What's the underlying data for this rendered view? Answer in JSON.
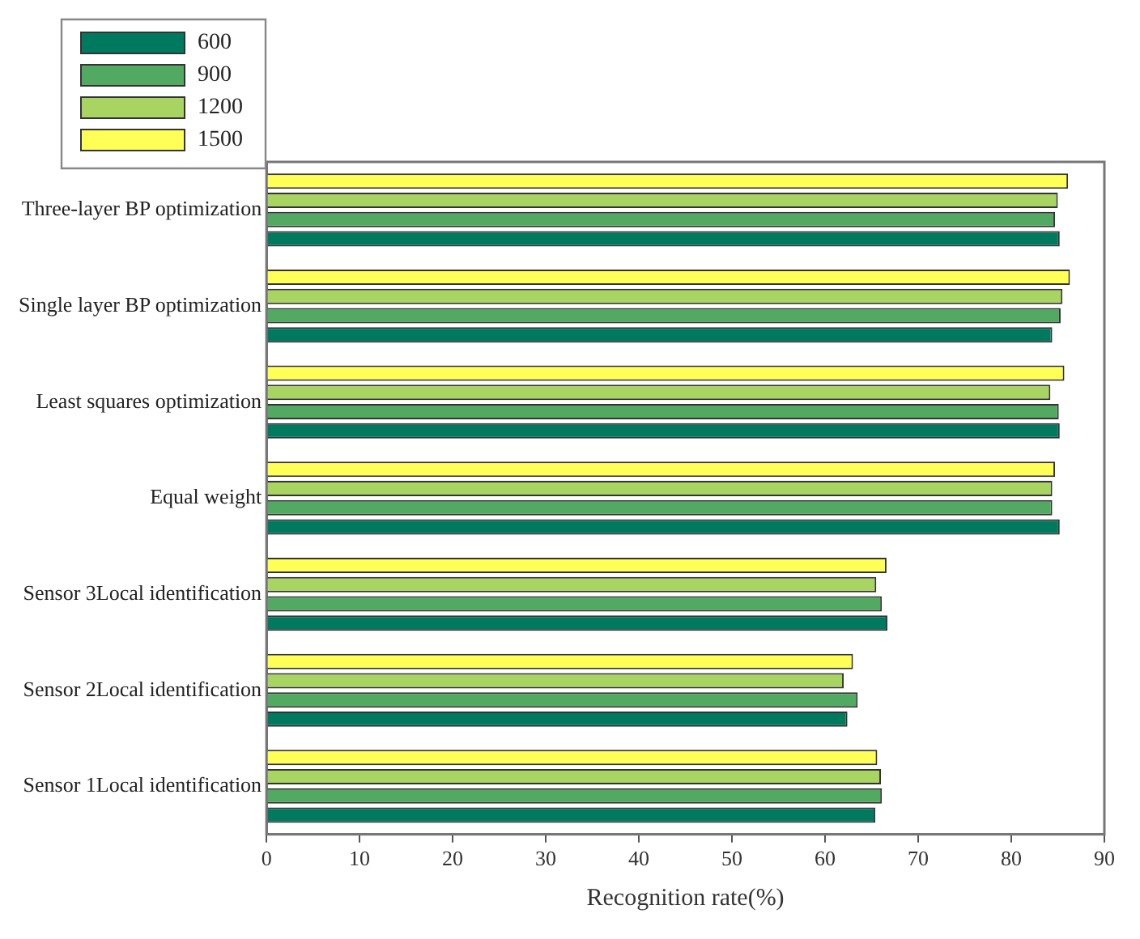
{
  "chart_data": {
    "type": "bar",
    "orientation": "horizontal",
    "xlabel": "Recognition rate(%)",
    "categories": [
      "Three-layer BP optimization",
      "Single layer BP optimization",
      "Least squares optimization",
      "Equal weight",
      "Sensor 3Local identification",
      "Sensor 2Local identification",
      "Sensor 1Local identification"
    ],
    "series": [
      {
        "name": "600",
        "color": "#007a5e",
        "values": [
          85.2,
          84.4,
          85.2,
          85.2,
          66.7,
          62.4,
          65.4
        ]
      },
      {
        "name": "900",
        "color": "#52aa62",
        "values": [
          84.7,
          85.3,
          85.1,
          84.4,
          66.1,
          63.5,
          66.1
        ]
      },
      {
        "name": "1200",
        "color": "#a8d461",
        "values": [
          85.0,
          85.5,
          84.2,
          84.4,
          65.5,
          62.0,
          66.0
        ]
      },
      {
        "name": "1500",
        "color": "#ffff55",
        "values": [
          86.1,
          86.3,
          85.7,
          84.7,
          66.6,
          63.0,
          65.6
        ]
      }
    ],
    "xlim": [
      0,
      90
    ],
    "xticks": [
      0,
      10,
      20,
      30,
      40,
      50,
      60,
      70,
      80,
      90
    ],
    "grid": false,
    "legend": "top left"
  }
}
